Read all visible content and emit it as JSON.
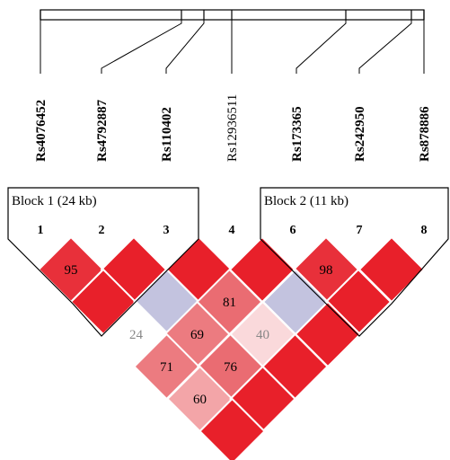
{
  "snps": [
    {
      "index": "1",
      "name": "Rs4076452",
      "bold": true
    },
    {
      "index": "2",
      "name": "Rs4792887",
      "bold": true
    },
    {
      "index": "3",
      "name": "Rs110402",
      "bold": true
    },
    {
      "index": "4",
      "name": "Rs12936511",
      "bold": false
    },
    {
      "index": "6",
      "name": "Rs173365",
      "bold": true
    },
    {
      "index": "7",
      "name": "Rs242950",
      "bold": true
    },
    {
      "index": "8",
      "name": "Rs878886",
      "bold": true
    }
  ],
  "blocks": [
    {
      "label": "Block 1 (24 kb)",
      "markers": [
        "1",
        "2",
        "3"
      ]
    },
    {
      "label": "Block 2 (11 kb)",
      "markers": [
        "6",
        "7",
        "8"
      ]
    }
  ],
  "ld_cells": [
    {
      "pair": [
        "1",
        "2"
      ],
      "value": "95",
      "color": "#e8303a"
    },
    {
      "pair": [
        "2",
        "3"
      ],
      "value": "",
      "color": "#e8202a"
    },
    {
      "pair": [
        "3",
        "4"
      ],
      "value": "",
      "color": "#e8202a"
    },
    {
      "pair": [
        "4",
        "6"
      ],
      "value": "",
      "color": "#e8202a"
    },
    {
      "pair": [
        "6",
        "7"
      ],
      "value": "98",
      "color": "#e8303a"
    },
    {
      "pair": [
        "7",
        "8"
      ],
      "value": "",
      "color": "#e8202a"
    },
    {
      "pair": [
        "1",
        "3"
      ],
      "value": "",
      "color": "#e8202a"
    },
    {
      "pair": [
        "2",
        "4"
      ],
      "value": "",
      "color": "#c3c3df"
    },
    {
      "pair": [
        "3",
        "6"
      ],
      "value": "81",
      "color": "#ea6c72"
    },
    {
      "pair": [
        "4",
        "7"
      ],
      "value": "",
      "color": "#c3c3df"
    },
    {
      "pair": [
        "6",
        "8"
      ],
      "value": "",
      "color": "#e8202a"
    },
    {
      "pair": [
        "1",
        "4"
      ],
      "value": "24",
      "color": "#ffffff",
      "text_color": "#888888"
    },
    {
      "pair": [
        "2",
        "6"
      ],
      "value": "69",
      "color": "#ec7b80"
    },
    {
      "pair": [
        "3",
        "7"
      ],
      "value": "40",
      "color": "#fad9db",
      "text_color": "#888888"
    },
    {
      "pair": [
        "4",
        "8"
      ],
      "value": "",
      "color": "#e8202a"
    },
    {
      "pair": [
        "1",
        "6"
      ],
      "value": "71",
      "color": "#ec7b80"
    },
    {
      "pair": [
        "2",
        "7"
      ],
      "value": "76",
      "color": "#ea6c72"
    },
    {
      "pair": [
        "3",
        "8"
      ],
      "value": "",
      "color": "#e8202a"
    },
    {
      "pair": [
        "1",
        "7"
      ],
      "value": "60",
      "color": "#f3a5a8"
    },
    {
      "pair": [
        "2",
        "8"
      ],
      "value": "",
      "color": "#e8202a"
    },
    {
      "pair": [
        "1",
        "8"
      ],
      "value": "",
      "color": "#e8202a"
    }
  ]
}
